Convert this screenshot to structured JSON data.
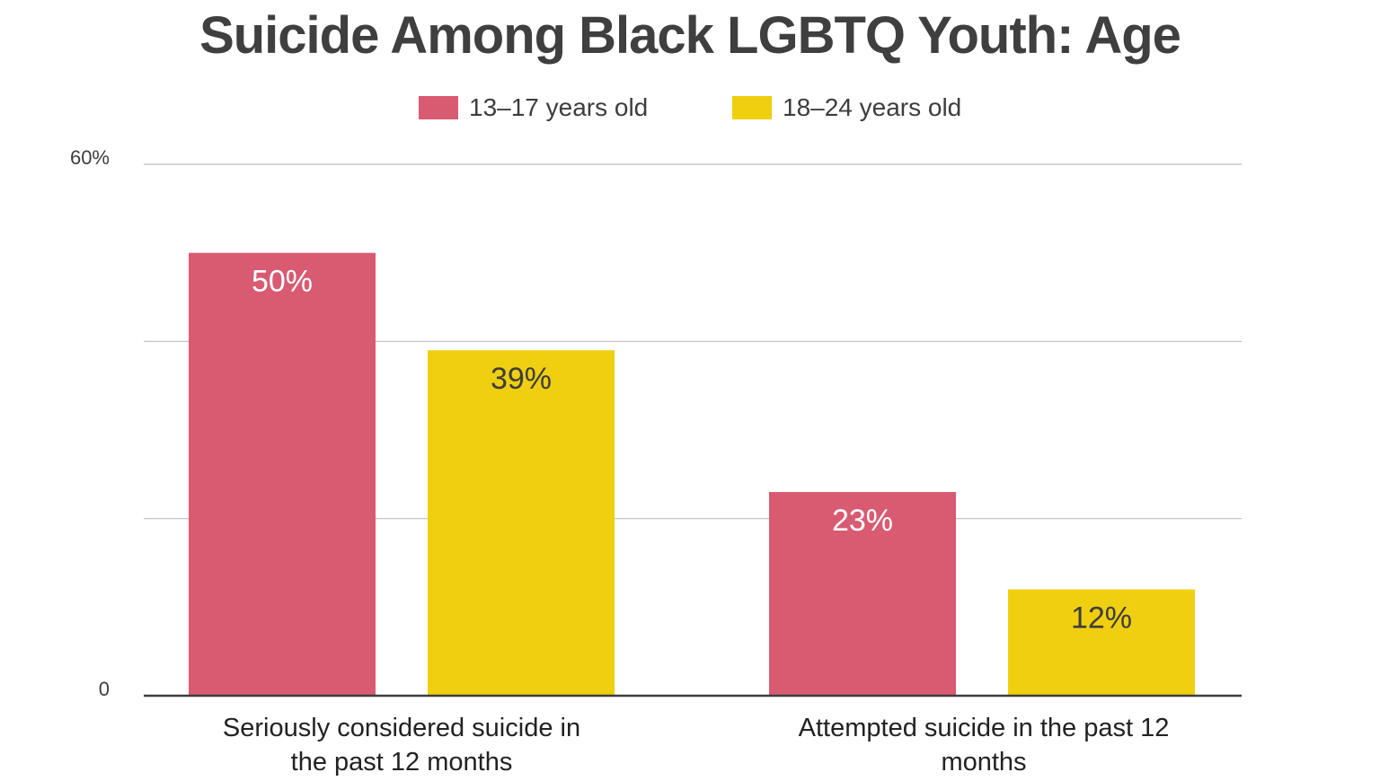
{
  "chart_data": {
    "type": "bar",
    "title": "Suicide Among Black LGBTQ Youth: Age",
    "categories": [
      "Seriously considered suicide in the past 12 months",
      "Attempted suicide in the past 12 months"
    ],
    "series": [
      {
        "name": "13–17 years old",
        "color": "#d85b72",
        "values": [
          50,
          23
        ],
        "data_labels": [
          "50%",
          "23%"
        ],
        "label_color": "#ffffff"
      },
      {
        "name": "18–24 years old",
        "color": "#efcf10",
        "values": [
          39,
          12
        ],
        "data_labels": [
          "39%",
          "12%"
        ],
        "label_color": "#3d3d3d"
      }
    ],
    "y_tick_labels": {
      "top": "60%",
      "bottom": "0"
    },
    "ylim": [
      0,
      60
    ],
    "grid_values": [
      20,
      40,
      60
    ],
    "grid": true,
    "legend_position": "top-center"
  }
}
